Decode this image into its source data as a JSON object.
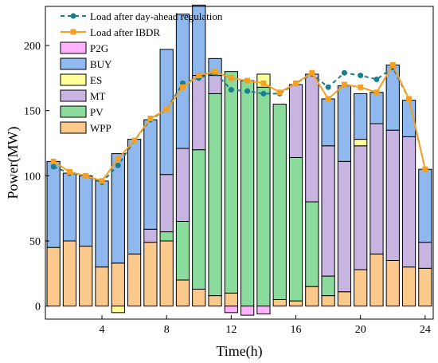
{
  "chart_data": {
    "type": "bar",
    "xlabel": "Time(h)",
    "ylabel": "Power(MW)",
    "xlim": [
      0.5,
      24.5
    ],
    "ylim": [
      -10,
      230
    ],
    "x_ticks": [
      4,
      8,
      12,
      16,
      20,
      24
    ],
    "y_ticks": [
      0,
      50,
      100,
      150,
      200
    ],
    "x": [
      1,
      2,
      3,
      4,
      5,
      6,
      7,
      8,
      9,
      10,
      11,
      12,
      13,
      14,
      15,
      16,
      17,
      18,
      19,
      20,
      21,
      22,
      23,
      24
    ],
    "stack_order": [
      "WPP",
      "PV",
      "MT",
      "ES",
      "BUY"
    ],
    "series": [
      {
        "name": "P2G",
        "kind": "bar",
        "color": "#ffb3ff",
        "values": [
          0,
          0,
          0,
          0,
          0,
          0,
          0,
          0,
          0,
          0,
          0,
          -5,
          -7,
          -6,
          0,
          0,
          0,
          0,
          0,
          0,
          0,
          0,
          0,
          0
        ]
      },
      {
        "name": "BUY",
        "kind": "bar",
        "color": "#8fb8ee",
        "values": [
          66,
          52,
          54,
          66,
          84,
          88,
          84,
          96,
          103,
          54,
          13,
          0,
          0,
          0,
          0,
          0,
          0,
          36,
          58,
          35,
          24,
          50,
          28,
          56
        ]
      },
      {
        "name": "ES",
        "kind": "bar",
        "color": "#ffff99",
        "values": [
          0,
          0,
          0,
          0,
          -5,
          0,
          0,
          0,
          0,
          0,
          0,
          0,
          0,
          10,
          0,
          0,
          0,
          0,
          0,
          5,
          0,
          0,
          0,
          0
        ]
      },
      {
        "name": "MT",
        "kind": "bar",
        "color": "#c8b4e0",
        "values": [
          0,
          0,
          0,
          0,
          0,
          0,
          10,
          44,
          56,
          57,
          14,
          0,
          0,
          0,
          0,
          56,
          98,
          100,
          100,
          95,
          100,
          100,
          100,
          20
        ]
      },
      {
        "name": "PV",
        "kind": "bar",
        "color": "#8bdc9c",
        "values": [
          0,
          0,
          0,
          0,
          0,
          0,
          0,
          7,
          45,
          107,
          155,
          170,
          173,
          168,
          150,
          110,
          65,
          15,
          0,
          0,
          0,
          0,
          0,
          0
        ]
      },
      {
        "name": "WPP",
        "kind": "bar",
        "color": "#fbc98c",
        "values": [
          45,
          50,
          46,
          30,
          33,
          40,
          49,
          50,
          20,
          13,
          8,
          10,
          0,
          0,
          5,
          4,
          15,
          8,
          11,
          28,
          40,
          35,
          30,
          29
        ]
      },
      {
        "name": "Load after day-ahead regulation",
        "kind": "line",
        "color": "#1a7f8c",
        "dash": "5,4",
        "marker": "circle",
        "values": [
          107,
          102,
          100,
          95,
          108,
          127,
          143,
          151,
          171,
          175,
          179,
          166,
          165,
          163,
          163,
          171,
          178,
          168,
          179,
          177,
          174,
          183,
          159,
          105
        ]
      },
      {
        "name": "Load after IBDR",
        "kind": "line",
        "color": "#f5a020",
        "dash": "",
        "marker": "square",
        "values": [
          111,
          103,
          100,
          96,
          113,
          127,
          144,
          151,
          168,
          177,
          180,
          175,
          173,
          171,
          164,
          171,
          179,
          159,
          170,
          168,
          164,
          185,
          159,
          105
        ]
      }
    ]
  }
}
